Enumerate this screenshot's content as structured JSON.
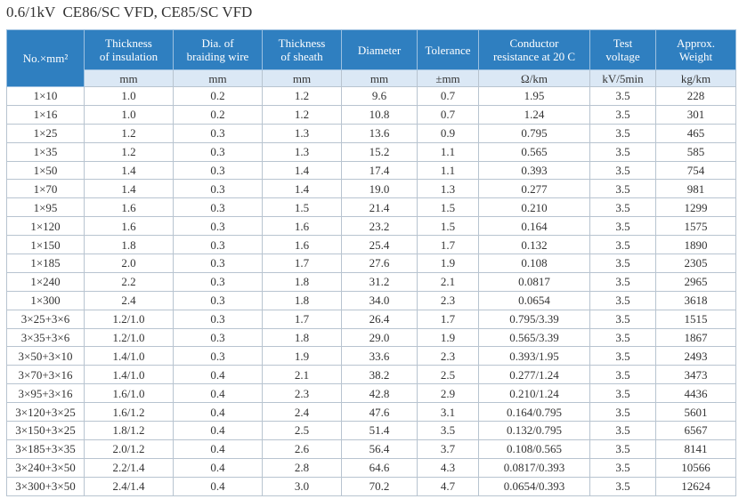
{
  "title": "0.6/1kV  CE86/SC VFD, CE85/SC VFD",
  "table": {
    "headers": [
      "No.×mm²",
      "Thickness\nof insulation",
      "Dia. of\nbraiding wire",
      "Thickness\nof sheath",
      "Diameter",
      "Tolerance",
      "Conductor\nresistance at 20 C",
      "Test\nvoltage",
      "Approx.\nWeight"
    ],
    "units": [
      "mm",
      "mm",
      "mm",
      "mm",
      "±mm",
      "Ω/km",
      "kV/5min",
      "kg/km"
    ],
    "rows": [
      [
        "1×10",
        "1.0",
        "0.2",
        "1.2",
        "9.6",
        "0.7",
        "1.95",
        "3.5",
        "228"
      ],
      [
        "1×16",
        "1.0",
        "0.2",
        "1.2",
        "10.8",
        "0.7",
        "1.24",
        "3.5",
        "301"
      ],
      [
        "1×25",
        "1.2",
        "0.3",
        "1.3",
        "13.6",
        "0.9",
        "0.795",
        "3.5",
        "465"
      ],
      [
        "1×35",
        "1.2",
        "0.3",
        "1.3",
        "15.2",
        "1.1",
        "0.565",
        "3.5",
        "585"
      ],
      [
        "1×50",
        "1.4",
        "0.3",
        "1.4",
        "17.4",
        "1.1",
        "0.393",
        "3.5",
        "754"
      ],
      [
        "1×70",
        "1.4",
        "0.3",
        "1.4",
        "19.0",
        "1.3",
        "0.277",
        "3.5",
        "981"
      ],
      [
        "1×95",
        "1.6",
        "0.3",
        "1.5",
        "21.4",
        "1.5",
        "0.210",
        "3.5",
        "1299"
      ],
      [
        "1×120",
        "1.6",
        "0.3",
        "1.6",
        "23.2",
        "1.5",
        "0.164",
        "3.5",
        "1575"
      ],
      [
        "1×150",
        "1.8",
        "0.3",
        "1.6",
        "25.4",
        "1.7",
        "0.132",
        "3.5",
        "1890"
      ],
      [
        "1×185",
        "2.0",
        "0.3",
        "1.7",
        "27.6",
        "1.9",
        "0.108",
        "3.5",
        "2305"
      ],
      [
        "1×240",
        "2.2",
        "0.3",
        "1.8",
        "31.2",
        "2.1",
        "0.0817",
        "3.5",
        "2965"
      ],
      [
        "1×300",
        "2.4",
        "0.3",
        "1.8",
        "34.0",
        "2.3",
        "0.0654",
        "3.5",
        "3618"
      ],
      [
        "3×25+3×6",
        "1.2/1.0",
        "0.3",
        "1.7",
        "26.4",
        "1.7",
        "0.795/3.39",
        "3.5",
        "1515"
      ],
      [
        "3×35+3×6",
        "1.2/1.0",
        "0.3",
        "1.8",
        "29.0",
        "1.9",
        "0.565/3.39",
        "3.5",
        "1867"
      ],
      [
        "3×50+3×10",
        "1.4/1.0",
        "0.3",
        "1.9",
        "33.6",
        "2.3",
        "0.393/1.95",
        "3.5",
        "2493"
      ],
      [
        "3×70+3×16",
        "1.4/1.0",
        "0.4",
        "2.1",
        "38.2",
        "2.5",
        "0.277/1.24",
        "3.5",
        "3473"
      ],
      [
        "3×95+3×16",
        "1.6/1.0",
        "0.4",
        "2.3",
        "42.8",
        "2.9",
        "0.210/1.24",
        "3.5",
        "4436"
      ],
      [
        "3×120+3×25",
        "1.6/1.2",
        "0.4",
        "2.4",
        "47.6",
        "3.1",
        "0.164/0.795",
        "3.5",
        "5601"
      ],
      [
        "3×150+3×25",
        "1.8/1.2",
        "0.4",
        "2.5",
        "51.4",
        "3.5",
        "0.132/0.795",
        "3.5",
        "6567"
      ],
      [
        "3×185+3×35",
        "2.0/1.2",
        "0.4",
        "2.6",
        "56.4",
        "3.7",
        "0.108/0.565",
        "3.5",
        "8141"
      ],
      [
        "3×240+3×50",
        "2.2/1.4",
        "0.4",
        "2.8",
        "64.6",
        "4.3",
        "0.0817/0.393",
        "3.5",
        "10566"
      ],
      [
        "3×300+3×50",
        "2.4/1.4",
        "0.4",
        "3.0",
        "70.2",
        "4.7",
        "0.0654/0.393",
        "3.5",
        "12624"
      ]
    ]
  }
}
